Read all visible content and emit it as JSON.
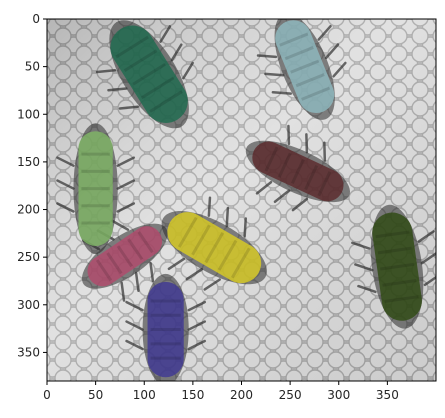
{
  "figure": {
    "image_extent": {
      "x": [
        0,
        400
      ],
      "y": [
        0,
        380
      ]
    },
    "x_ticks": [
      0,
      50,
      100,
      150,
      200,
      250,
      300,
      350
    ],
    "y_ticks": [
      0,
      50,
      100,
      150,
      200,
      250,
      300,
      350
    ],
    "image_content": "grayscale honeycomb background with bee-shaped bodies under colored segmentation masks",
    "masks": [
      {
        "name": "dark-green",
        "color": "#1f6b4f",
        "cx": 105,
        "cy": 58,
        "length": 110,
        "width": 46,
        "angle": 58
      },
      {
        "name": "light-blue",
        "color": "#8fb9c0",
        "cx": 265,
        "cy": 50,
        "length": 100,
        "width": 38,
        "angle": 68
      },
      {
        "name": "brown",
        "color": "#5b2a2c",
        "cx": 258,
        "cy": 160,
        "length": 100,
        "width": 34,
        "angle": 25
      },
      {
        "name": "light-green",
        "color": "#7fb565",
        "cx": 50,
        "cy": 178,
        "length": 118,
        "width": 36,
        "angle": 90
      },
      {
        "name": "yellow",
        "color": "#d9cc23",
        "cx": 172,
        "cy": 240,
        "length": 105,
        "width": 42,
        "angle": 30
      },
      {
        "name": "pink",
        "color": "#b24a6d",
        "cx": 80,
        "cy": 249,
        "length": 86,
        "width": 32,
        "angle": -34
      },
      {
        "name": "olive",
        "color": "#2f4a13",
        "cx": 360,
        "cy": 260,
        "length": 112,
        "width": 42,
        "angle": 82
      },
      {
        "name": "purple",
        "color": "#3f3894",
        "cx": 122,
        "cy": 326,
        "length": 98,
        "width": 38,
        "angle": 90
      }
    ]
  }
}
